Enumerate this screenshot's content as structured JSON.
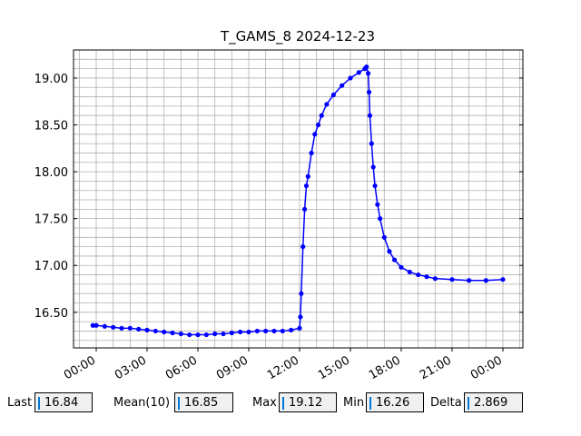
{
  "chart_data": {
    "type": "line",
    "title": "T_GAMS_8 2024-12-23",
    "x": [
      -0.2,
      0,
      0.5,
      1,
      1.5,
      2,
      2.5,
      3,
      3.5,
      4,
      4.5,
      5,
      5.5,
      6,
      6.5,
      7,
      7.5,
      8,
      8.5,
      9,
      9.5,
      10,
      10.5,
      11,
      11.5,
      12,
      12.05,
      12.1,
      12.2,
      12.3,
      12.4,
      12.5,
      12.7,
      12.9,
      13.1,
      13.3,
      13.6,
      14,
      14.5,
      15,
      15.5,
      15.85,
      15.95,
      16.05,
      16.1,
      16.15,
      16.25,
      16.35,
      16.45,
      16.6,
      16.75,
      17,
      17.3,
      17.6,
      18,
      18.5,
      19,
      19.5,
      20,
      21,
      22,
      23,
      24
    ],
    "series": [
      {
        "name": "T_GAMS_8",
        "color": "#0000ff",
        "values": [
          16.36,
          16.36,
          16.35,
          16.34,
          16.33,
          16.33,
          16.32,
          16.31,
          16.3,
          16.29,
          16.28,
          16.27,
          16.26,
          16.26,
          16.26,
          16.27,
          16.27,
          16.28,
          16.29,
          16.29,
          16.3,
          16.3,
          16.3,
          16.3,
          16.31,
          16.33,
          16.45,
          16.7,
          17.2,
          17.6,
          17.85,
          17.95,
          18.2,
          18.4,
          18.5,
          18.6,
          18.72,
          18.82,
          18.92,
          19.0,
          19.06,
          19.1,
          19.12,
          19.05,
          18.85,
          18.6,
          18.3,
          18.05,
          17.85,
          17.65,
          17.5,
          17.3,
          17.15,
          17.06,
          16.98,
          16.93,
          16.9,
          16.88,
          16.86,
          16.85,
          16.84,
          16.84,
          16.85
        ]
      }
    ],
    "xlim": [
      -1.34,
      25.18
    ],
    "xticks": [
      {
        "value": 0,
        "label": "00:00"
      },
      {
        "value": 3,
        "label": "03:00"
      },
      {
        "value": 6,
        "label": "06:00"
      },
      {
        "value": 9,
        "label": "09:00"
      },
      {
        "value": 12,
        "label": "12:00"
      },
      {
        "value": 15,
        "label": "15:00"
      },
      {
        "value": 18,
        "label": "18:00"
      },
      {
        "value": 21,
        "label": "21:00"
      },
      {
        "value": 24,
        "label": "00:00"
      }
    ],
    "ylim": [
      16.12,
      19.3
    ],
    "yticks": [
      {
        "value": 16.5,
        "label": "16.50"
      },
      {
        "value": 17,
        "label": "17.00"
      },
      {
        "value": 17.5,
        "label": "17.50"
      },
      {
        "value": 18,
        "label": "18.00"
      },
      {
        "value": 18.5,
        "label": "18.50"
      },
      {
        "value": 19,
        "label": "19.00"
      }
    ],
    "xminorticks": [
      -1,
      0,
      1,
      2,
      3,
      4,
      5,
      6,
      7,
      8,
      9,
      10,
      11,
      12,
      13,
      14,
      15,
      16,
      17,
      18,
      19,
      20,
      21,
      22,
      23,
      24,
      25
    ],
    "yminorticks": [
      16.2,
      16.3,
      16.4,
      16.5,
      16.6,
      16.7,
      16.8,
      16.9,
      17,
      17.1,
      17.2,
      17.3,
      17.4,
      17.5,
      17.6,
      17.7,
      17.8,
      17.9,
      18,
      18.1,
      18.2,
      18.3,
      18.4,
      18.5,
      18.6,
      18.7,
      18.8,
      18.9,
      19,
      19.1,
      19.2
    ],
    "grid": true,
    "markers": true
  },
  "status": [
    {
      "label": "Last",
      "value": 16.84
    },
    {
      "label": "Mean(10)",
      "value": 16.85
    },
    {
      "label": "Max",
      "value": 19.12
    },
    {
      "label": "Min",
      "value": 16.26
    },
    {
      "label": "Delta",
      "value": 2.869
    }
  ]
}
